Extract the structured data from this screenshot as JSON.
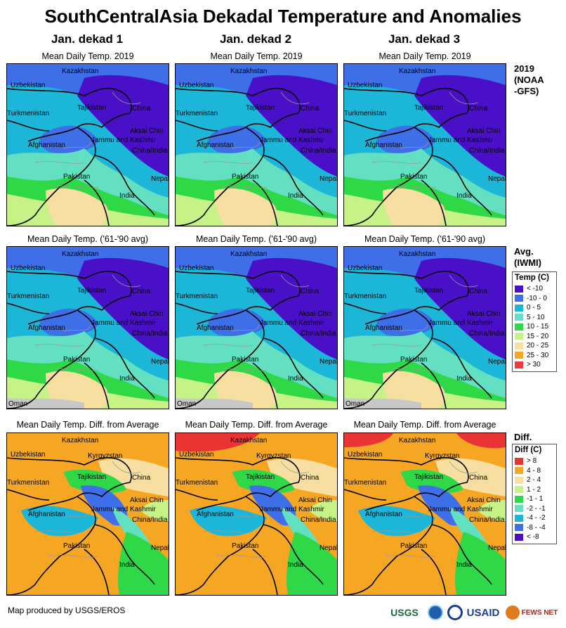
{
  "title": "SouthCentralAsia Dekadal Temperature and Anomalies",
  "columns": [
    "Jan. dekad 1",
    "Jan. dekad 2",
    "Jan. dekad 3"
  ],
  "rows": [
    {
      "panel_title": "Mean Daily Temp. 2019",
      "side_label": "2019\n(NOAA\n-GFS)"
    },
    {
      "panel_title": "Mean Daily Temp. ('61-'90 avg)",
      "side_label": "Avg.\n(IWMI)"
    },
    {
      "panel_title": "Mean Daily Temp. Diff. from Average",
      "side_label": "Diff."
    }
  ],
  "place_labels": {
    "kazakhstan": "Kazakhstan",
    "uzbekistan": "Uzbekistan",
    "turkmenistan": "Turkmenistan",
    "tajikistan": "Tajikistan",
    "kyrgyzstan": "Kyrgyzstan",
    "china": "China",
    "afghanistan": "Afghanistan",
    "aksai_chin": "Aksai Chin",
    "jammu_kashmir": "Jammu and Kashmir",
    "china_india": "China/India",
    "pakistan": "Pakistan",
    "india": "India",
    "nepal": "Nepal",
    "oman": "Oman"
  },
  "temp_legend": {
    "title": "Temp (C)",
    "items": [
      {
        "label": "< -10",
        "color": "#4a10c8"
      },
      {
        "label": "-10 - 0",
        "color": "#3f6fe8"
      },
      {
        "label": "0 - 5",
        "color": "#1cb6d8"
      },
      {
        "label": "5 - 10",
        "color": "#63e0c2"
      },
      {
        "label": "10 - 15",
        "color": "#2fd847"
      },
      {
        "label": "15 - 20",
        "color": "#c6f287"
      },
      {
        "label": "20 - 25",
        "color": "#f6dfa0"
      },
      {
        "label": "25 - 30",
        "color": "#f5a623"
      },
      {
        "label": "> 30",
        "color": "#ee3b3b"
      }
    ]
  },
  "diff_legend": {
    "title": "Diff (C)",
    "items": [
      {
        "label": "> 8",
        "color": "#ea3434"
      },
      {
        "label": "4 - 8",
        "color": "#f5a623"
      },
      {
        "label": "2 - 4",
        "color": "#f6dfa0"
      },
      {
        "label": "1 - 2",
        "color": "#c6f287"
      },
      {
        "label": "-1 - 1",
        "color": "#2fd847"
      },
      {
        "label": "-2 - -1",
        "color": "#63e0c2"
      },
      {
        "label": "-4 - -2",
        "color": "#1cb6d8"
      },
      {
        "label": "-8 - -4",
        "color": "#3f6fe8"
      },
      {
        "label": "< -8",
        "color": "#4a10c8"
      }
    ]
  },
  "credit": "Map produced by USGS/EROS",
  "logos": [
    "USGS",
    "NOAA",
    "USAID",
    "FEWS NET"
  ]
}
